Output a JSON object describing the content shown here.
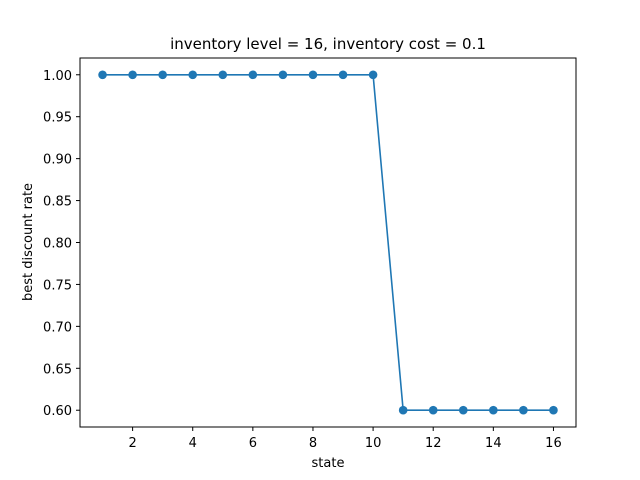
{
  "chart_data": {
    "type": "line",
    "title": "inventory level = 16, inventory cost = 0.1",
    "xlabel": "state",
    "ylabel": "best discount rate",
    "x": [
      1,
      2,
      3,
      4,
      5,
      6,
      7,
      8,
      9,
      10,
      11,
      12,
      13,
      14,
      15,
      16
    ],
    "series": [
      {
        "values": [
          1.0,
          1.0,
          1.0,
          1.0,
          1.0,
          1.0,
          1.0,
          1.0,
          1.0,
          1.0,
          0.6,
          0.6,
          0.6,
          0.6,
          0.6,
          0.6
        ],
        "color": "#1f77b4",
        "marker": "circle"
      }
    ],
    "xlim": [
      0.25,
      16.75
    ],
    "ylim": [
      0.58,
      1.02
    ],
    "xticks": [
      2,
      4,
      6,
      8,
      10,
      12,
      14,
      16
    ],
    "yticks": [
      0.6,
      0.65,
      0.7,
      0.75,
      0.8,
      0.85,
      0.9,
      0.95,
      1.0
    ],
    "ytick_labels": [
      "0.60",
      "0.65",
      "0.70",
      "0.75",
      "0.80",
      "0.85",
      "0.90",
      "0.95",
      "1.00"
    ],
    "xtick_labels": [
      "2",
      "4",
      "6",
      "8",
      "10",
      "12",
      "14",
      "16"
    ],
    "grid": false,
    "legend": "none"
  }
}
